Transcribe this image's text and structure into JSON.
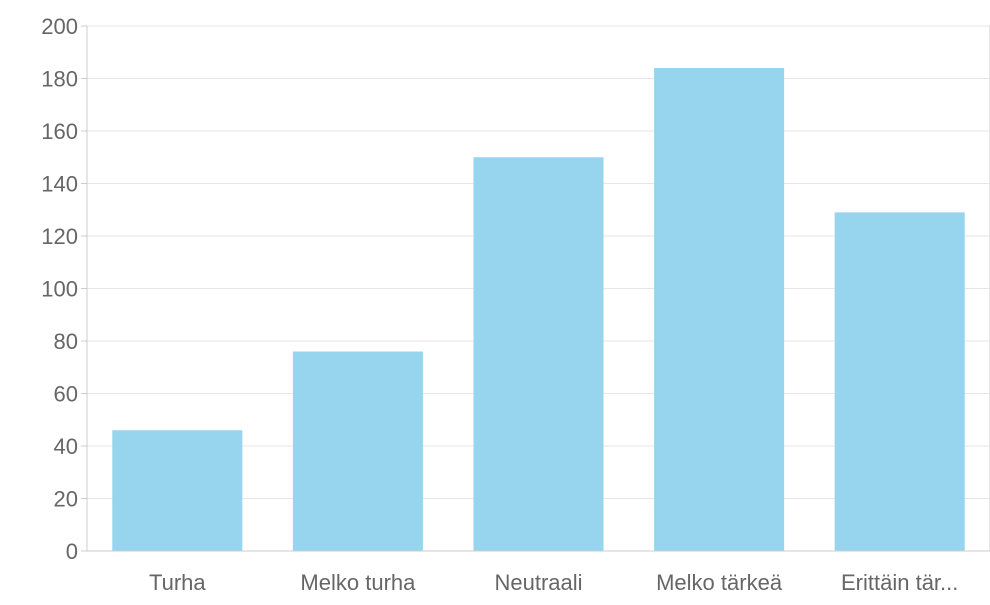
{
  "chart_data": {
    "type": "bar",
    "title": "",
    "xlabel": "",
    "ylabel": "",
    "categories": [
      "Turha",
      "Melko turha",
      "Neutraali",
      "Melko tärkeä",
      "Erittäin tär..."
    ],
    "values": [
      46,
      76,
      150,
      184,
      129
    ],
    "ylim": [
      0,
      200
    ],
    "yticks": [
      0,
      20,
      40,
      60,
      80,
      100,
      120,
      140,
      160,
      180,
      200
    ],
    "grid": true,
    "legend": "none",
    "colors": {
      "bar": "#97d4ed",
      "grid": "#e6e6e6",
      "axis": "#cccccc",
      "text": "#666666"
    }
  }
}
